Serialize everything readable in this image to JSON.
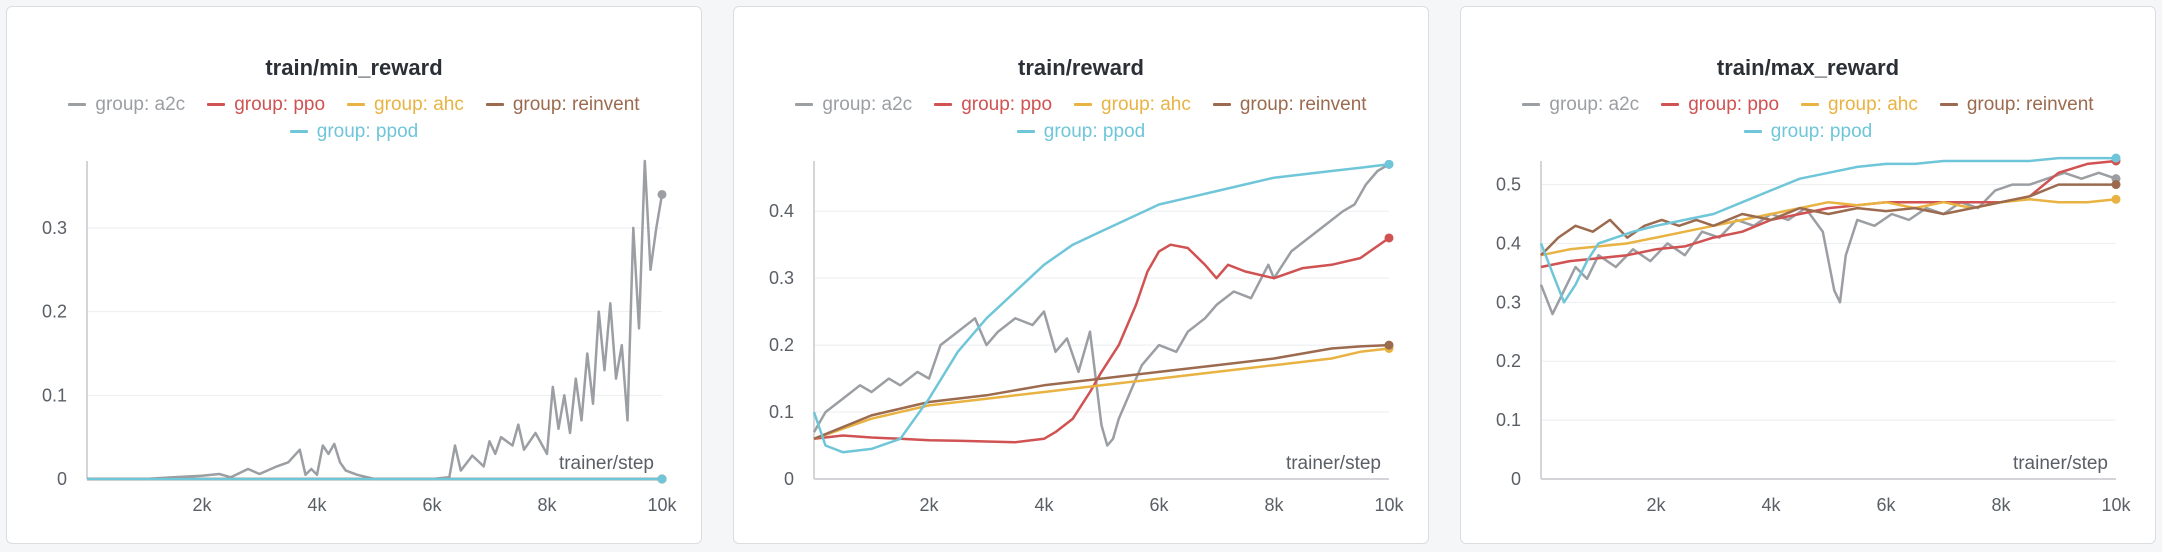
{
  "chart_data": [
    {
      "type": "line",
      "title": "train/min_reward",
      "xlabel": "trainer/step",
      "ylabel": "",
      "xlim": [
        0,
        10000
      ],
      "ylim": [
        0,
        0.38
      ],
      "x_ticks": [
        2000,
        4000,
        6000,
        8000,
        10000
      ],
      "x_tick_labels": [
        "2k",
        "4k",
        "6k",
        "8k",
        "10k"
      ],
      "y_ticks": [
        0,
        0.1,
        0.2,
        0.3
      ],
      "y_tick_labels": [
        "0",
        "0.1",
        "0.2",
        "0.3"
      ],
      "grid": true,
      "legend_position": "top",
      "series": [
        {
          "name": "group: a2c",
          "color": "#9b9ea3",
          "x": [
            0,
            1000,
            1500,
            2000,
            2300,
            2500,
            2800,
            3000,
            3300,
            3500,
            3700,
            3800,
            3900,
            4000,
            4100,
            4200,
            4300,
            4400,
            4500,
            4700,
            5000,
            5500,
            6000,
            6300,
            6400,
            6500,
            6700,
            6900,
            7000,
            7100,
            7200,
            7400,
            7500,
            7600,
            7800,
            8000,
            8100,
            8200,
            8300,
            8400,
            8500,
            8600,
            8700,
            8800,
            8900,
            9000,
            9100,
            9200,
            9300,
            9400,
            9500,
            9600,
            9700,
            9800,
            9900,
            10000
          ],
          "y": [
            0,
            0,
            0.002,
            0.004,
            0.006,
            0.002,
            0.012,
            0.006,
            0.015,
            0.02,
            0.035,
            0.005,
            0.012,
            0.005,
            0.04,
            0.03,
            0.042,
            0.02,
            0.01,
            0.005,
            0,
            0,
            0,
            0.002,
            0.04,
            0.01,
            0.028,
            0.015,
            0.045,
            0.03,
            0.05,
            0.04,
            0.065,
            0.035,
            0.055,
            0.03,
            0.11,
            0.06,
            0.1,
            0.055,
            0.12,
            0.07,
            0.15,
            0.09,
            0.2,
            0.13,
            0.21,
            0.12,
            0.16,
            0.07,
            0.3,
            0.18,
            0.38,
            0.25,
            0.3,
            0.34
          ]
        },
        {
          "name": "group: ppo",
          "color": "#d05252",
          "x": [
            0,
            10000
          ],
          "y": [
            0,
            0
          ]
        },
        {
          "name": "group: ahc",
          "color": "#e8b342",
          "x": [
            0,
            10000
          ],
          "y": [
            0,
            0
          ]
        },
        {
          "name": "group: reinvent",
          "color": "#9c6a4e",
          "x": [
            0,
            10000
          ],
          "y": [
            0,
            0
          ]
        },
        {
          "name": "group: ppod",
          "color": "#6fc6d9",
          "x": [
            0,
            10000
          ],
          "y": [
            0,
            0
          ]
        }
      ]
    },
    {
      "type": "line",
      "title": "train/reward",
      "xlabel": "trainer/step",
      "ylabel": "",
      "xlim": [
        0,
        10000
      ],
      "ylim": [
        0,
        0.475
      ],
      "x_ticks": [
        2000,
        4000,
        6000,
        8000,
        10000
      ],
      "x_tick_labels": [
        "2k",
        "4k",
        "6k",
        "8k",
        "10k"
      ],
      "y_ticks": [
        0,
        0.1,
        0.2,
        0.3,
        0.4
      ],
      "y_tick_labels": [
        "0",
        "0.1",
        "0.2",
        "0.3",
        "0.4"
      ],
      "grid": true,
      "legend_position": "top",
      "series": [
        {
          "name": "group: a2c",
          "color": "#9b9ea3",
          "x": [
            0,
            200,
            500,
            800,
            1000,
            1300,
            1500,
            1800,
            2000,
            2200,
            2500,
            2800,
            3000,
            3200,
            3500,
            3800,
            4000,
            4200,
            4400,
            4600,
            4800,
            5000,
            5100,
            5200,
            5300,
            5500,
            5700,
            6000,
            6300,
            6500,
            6800,
            7000,
            7300,
            7600,
            7900,
            8000,
            8300,
            8600,
            8900,
            9200,
            9400,
            9600,
            9800,
            10000
          ],
          "y": [
            0.07,
            0.1,
            0.12,
            0.14,
            0.13,
            0.15,
            0.14,
            0.16,
            0.15,
            0.2,
            0.22,
            0.24,
            0.2,
            0.22,
            0.24,
            0.23,
            0.25,
            0.19,
            0.21,
            0.16,
            0.22,
            0.08,
            0.05,
            0.06,
            0.09,
            0.13,
            0.17,
            0.2,
            0.19,
            0.22,
            0.24,
            0.26,
            0.28,
            0.27,
            0.32,
            0.3,
            0.34,
            0.36,
            0.38,
            0.4,
            0.41,
            0.44,
            0.46,
            0.47
          ]
        },
        {
          "name": "group: ppo",
          "color": "#d05252",
          "x": [
            0,
            500,
            1000,
            1500,
            2000,
            2500,
            3000,
            3500,
            4000,
            4200,
            4500,
            4800,
            5000,
            5300,
            5600,
            5800,
            6000,
            6200,
            6500,
            6800,
            7000,
            7200,
            7500,
            8000,
            8500,
            9000,
            9500,
            10000
          ],
          "y": [
            0.06,
            0.065,
            0.062,
            0.06,
            0.058,
            0.057,
            0.056,
            0.055,
            0.06,
            0.07,
            0.09,
            0.13,
            0.16,
            0.2,
            0.26,
            0.31,
            0.34,
            0.35,
            0.345,
            0.32,
            0.3,
            0.32,
            0.31,
            0.3,
            0.315,
            0.32,
            0.33,
            0.36
          ]
        },
        {
          "name": "group: ahc",
          "color": "#e8b342",
          "x": [
            0,
            1000,
            2000,
            3000,
            4000,
            5000,
            6000,
            7000,
            8000,
            9000,
            9500,
            10000
          ],
          "y": [
            0.06,
            0.09,
            0.11,
            0.12,
            0.13,
            0.14,
            0.15,
            0.16,
            0.17,
            0.18,
            0.19,
            0.195
          ]
        },
        {
          "name": "group: reinvent",
          "color": "#9c6a4e",
          "x": [
            0,
            1000,
            2000,
            3000,
            4000,
            5000,
            6000,
            7000,
            8000,
            9000,
            9500,
            10000
          ],
          "y": [
            0.06,
            0.095,
            0.115,
            0.125,
            0.14,
            0.15,
            0.16,
            0.17,
            0.18,
            0.195,
            0.198,
            0.2
          ]
        },
        {
          "name": "group: ppod",
          "color": "#6fc6d9",
          "x": [
            0,
            200,
            500,
            1000,
            1500,
            2000,
            2500,
            3000,
            3500,
            4000,
            4500,
            5000,
            5500,
            6000,
            6500,
            7000,
            7500,
            8000,
            8500,
            9000,
            9500,
            10000
          ],
          "y": [
            0.1,
            0.05,
            0.04,
            0.045,
            0.06,
            0.12,
            0.19,
            0.24,
            0.28,
            0.32,
            0.35,
            0.37,
            0.39,
            0.41,
            0.42,
            0.43,
            0.44,
            0.45,
            0.455,
            0.46,
            0.465,
            0.47
          ]
        }
      ]
    },
    {
      "type": "line",
      "title": "train/max_reward",
      "xlabel": "trainer/step",
      "ylabel": "",
      "xlim": [
        0,
        10000
      ],
      "ylim": [
        0,
        0.54
      ],
      "x_ticks": [
        2000,
        4000,
        6000,
        8000,
        10000
      ],
      "x_tick_labels": [
        "2k",
        "4k",
        "6k",
        "8k",
        "10k"
      ],
      "y_ticks": [
        0,
        0.1,
        0.2,
        0.3,
        0.4,
        0.5
      ],
      "y_tick_labels": [
        "0",
        "0.1",
        "0.2",
        "0.3",
        "0.4",
        "0.5"
      ],
      "grid": true,
      "legend_position": "top",
      "series": [
        {
          "name": "group: a2c",
          "color": "#9b9ea3",
          "x": [
            0,
            200,
            400,
            600,
            800,
            1000,
            1300,
            1600,
            1900,
            2200,
            2500,
            2800,
            3100,
            3400,
            3700,
            4000,
            4300,
            4600,
            4900,
            5100,
            5200,
            5300,
            5500,
            5800,
            6100,
            6400,
            6700,
            7000,
            7300,
            7600,
            7900,
            8200,
            8500,
            8800,
            9100,
            9400,
            9700,
            10000
          ],
          "y": [
            0.33,
            0.28,
            0.32,
            0.36,
            0.34,
            0.38,
            0.36,
            0.39,
            0.37,
            0.4,
            0.38,
            0.42,
            0.41,
            0.44,
            0.43,
            0.45,
            0.44,
            0.46,
            0.42,
            0.32,
            0.3,
            0.38,
            0.44,
            0.43,
            0.45,
            0.44,
            0.46,
            0.45,
            0.47,
            0.46,
            0.49,
            0.5,
            0.5,
            0.51,
            0.52,
            0.51,
            0.52,
            0.51
          ]
        },
        {
          "name": "group: ppo",
          "color": "#d05252",
          "x": [
            0,
            500,
            1000,
            1500,
            2000,
            2500,
            3000,
            3500,
            4000,
            4500,
            5000,
            5500,
            6000,
            6500,
            7000,
            7500,
            8000,
            8500,
            9000,
            9500,
            10000
          ],
          "y": [
            0.36,
            0.37,
            0.375,
            0.38,
            0.39,
            0.395,
            0.41,
            0.42,
            0.44,
            0.45,
            0.46,
            0.465,
            0.47,
            0.47,
            0.47,
            0.47,
            0.47,
            0.48,
            0.52,
            0.535,
            0.54
          ]
        },
        {
          "name": "group: ahc",
          "color": "#e8b342",
          "x": [
            0,
            500,
            1000,
            1500,
            2000,
            2500,
            3000,
            3500,
            4000,
            4500,
            5000,
            5500,
            6000,
            6500,
            7000,
            7500,
            8000,
            8500,
            9000,
            9500,
            10000
          ],
          "y": [
            0.38,
            0.39,
            0.395,
            0.4,
            0.41,
            0.42,
            0.43,
            0.44,
            0.45,
            0.46,
            0.47,
            0.465,
            0.47,
            0.46,
            0.47,
            0.46,
            0.47,
            0.475,
            0.47,
            0.47,
            0.475
          ]
        },
        {
          "name": "group: reinvent",
          "color": "#9c6a4e",
          "x": [
            0,
            300,
            600,
            900,
            1200,
            1500,
            1800,
            2100,
            2400,
            2700,
            3000,
            3500,
            4000,
            4500,
            5000,
            5500,
            6000,
            6500,
            7000,
            7500,
            8000,
            8500,
            9000,
            9500,
            10000
          ],
          "y": [
            0.38,
            0.41,
            0.43,
            0.42,
            0.44,
            0.41,
            0.43,
            0.44,
            0.43,
            0.44,
            0.43,
            0.45,
            0.44,
            0.46,
            0.45,
            0.46,
            0.455,
            0.46,
            0.45,
            0.46,
            0.47,
            0.48,
            0.5,
            0.5,
            0.5
          ]
        },
        {
          "name": "group: ppod",
          "color": "#6fc6d9",
          "x": [
            0,
            200,
            400,
            600,
            800,
            1000,
            1300,
            1600,
            2000,
            2500,
            3000,
            3500,
            4000,
            4500,
            5000,
            5500,
            6000,
            6500,
            7000,
            7500,
            8000,
            8500,
            9000,
            9500,
            10000
          ],
          "y": [
            0.4,
            0.35,
            0.3,
            0.33,
            0.37,
            0.4,
            0.41,
            0.42,
            0.43,
            0.44,
            0.45,
            0.47,
            0.49,
            0.51,
            0.52,
            0.53,
            0.535,
            0.535,
            0.54,
            0.54,
            0.54,
            0.54,
            0.545,
            0.545,
            0.545
          ]
        }
      ]
    }
  ]
}
